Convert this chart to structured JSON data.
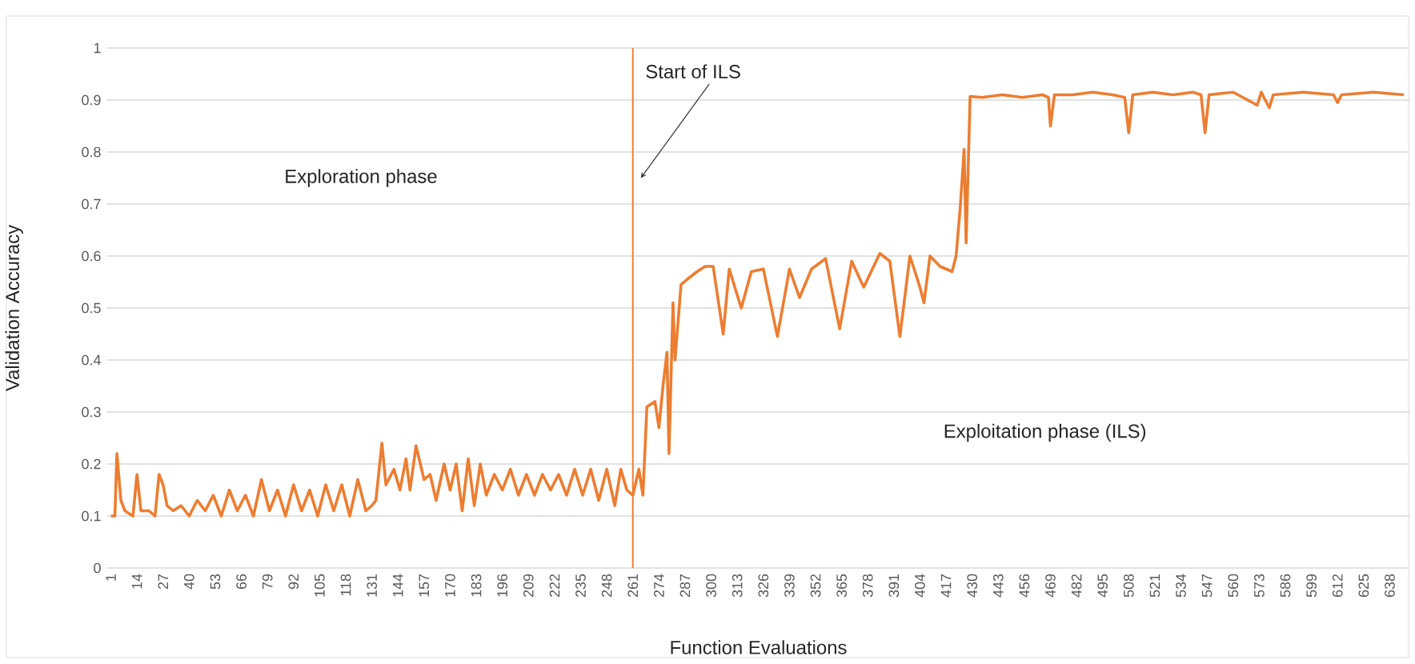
{
  "chart_data": {
    "type": "line",
    "xlabel": "Function Evaluations",
    "ylabel": "Validation Accuracy",
    "x": [
      1,
      3,
      4,
      6,
      8,
      12,
      14,
      16,
      20,
      23,
      25,
      27,
      29,
      32,
      36,
      40,
      44,
      48,
      52,
      56,
      60,
      64,
      68,
      72,
      76,
      80,
      84,
      88,
      92,
      96,
      100,
      104,
      108,
      112,
      116,
      120,
      124,
      128,
      131,
      133,
      136,
      138,
      142,
      145,
      148,
      150,
      153,
      157,
      160,
      163,
      167,
      170,
      173,
      176,
      179,
      182,
      185,
      188,
      192,
      196,
      200,
      204,
      208,
      212,
      216,
      220,
      224,
      228,
      232,
      236,
      240,
      244,
      248,
      252,
      255,
      258,
      261,
      264,
      266,
      268,
      272,
      274,
      276,
      278,
      279,
      281,
      282,
      285,
      288,
      293,
      297,
      301,
      306,
      309,
      315,
      320,
      326,
      333,
      339,
      344,
      350,
      357,
      364,
      370,
      376,
      384,
      389,
      394,
      399,
      404,
      406,
      409,
      414,
      420,
      422,
      424,
      426,
      427,
      429,
      435,
      445,
      455,
      465,
      468,
      469,
      471,
      480,
      490,
      500,
      506,
      508,
      510,
      520,
      530,
      540,
      544,
      546,
      548,
      560,
      572,
      574,
      578,
      580,
      595,
      610,
      612,
      614,
      630,
      645
    ],
    "values": [
      0.1,
      0.1,
      0.22,
      0.13,
      0.11,
      0.1,
      0.18,
      0.11,
      0.11,
      0.1,
      0.18,
      0.16,
      0.12,
      0.11,
      0.12,
      0.1,
      0.13,
      0.11,
      0.14,
      0.1,
      0.15,
      0.11,
      0.14,
      0.1,
      0.17,
      0.11,
      0.15,
      0.1,
      0.16,
      0.11,
      0.15,
      0.1,
      0.16,
      0.11,
      0.16,
      0.1,
      0.17,
      0.11,
      0.12,
      0.13,
      0.24,
      0.16,
      0.19,
      0.15,
      0.21,
      0.15,
      0.235,
      0.17,
      0.18,
      0.13,
      0.2,
      0.15,
      0.2,
      0.11,
      0.21,
      0.12,
      0.2,
      0.14,
      0.18,
      0.15,
      0.19,
      0.14,
      0.18,
      0.14,
      0.18,
      0.15,
      0.18,
      0.14,
      0.19,
      0.14,
      0.19,
      0.13,
      0.19,
      0.12,
      0.19,
      0.15,
      0.14,
      0.19,
      0.14,
      0.31,
      0.32,
      0.27,
      0.35,
      0.415,
      0.22,
      0.51,
      0.4,
      0.545,
      0.555,
      0.57,
      0.58,
      0.58,
      0.45,
      0.575,
      0.5,
      0.57,
      0.575,
      0.445,
      0.575,
      0.52,
      0.575,
      0.595,
      0.46,
      0.59,
      0.54,
      0.605,
      0.59,
      0.445,
      0.6,
      0.54,
      0.51,
      0.6,
      0.58,
      0.57,
      0.6,
      0.69,
      0.805,
      0.625,
      0.907,
      0.905,
      0.91,
      0.905,
      0.91,
      0.905,
      0.85,
      0.91,
      0.91,
      0.915,
      0.91,
      0.905,
      0.837,
      0.91,
      0.915,
      0.91,
      0.915,
      0.91,
      0.837,
      0.91,
      0.915,
      0.89,
      0.915,
      0.885,
      0.91,
      0.915,
      0.91,
      0.895,
      0.91,
      0.915,
      0.91
    ],
    "color": "#ed7d31",
    "xlim": [
      -1,
      648
    ],
    "xticks": [
      1,
      14,
      27,
      40,
      53,
      66,
      79,
      92,
      105,
      118,
      131,
      144,
      157,
      170,
      183,
      196,
      209,
      222,
      235,
      248,
      261,
      274,
      287,
      300,
      313,
      326,
      339,
      352,
      365,
      378,
      391,
      404,
      417,
      430,
      443,
      456,
      469,
      482,
      495,
      508,
      521,
      534,
      547,
      560,
      573,
      586,
      599,
      612,
      625,
      638
    ],
    "ylim": [
      0,
      1
    ],
    "yticks": [
      0,
      0.1,
      0.2,
      0.3,
      0.4,
      0.5,
      0.6,
      0.7,
      0.8,
      0.9,
      1
    ],
    "grid": "y",
    "ref_lines": [
      {
        "axis": "x",
        "value": 261,
        "color": "#ed7d31"
      }
    ],
    "annotations": [
      "Start of ILS",
      "Exploration phase",
      "Exploitation phase (ILS)"
    ]
  }
}
